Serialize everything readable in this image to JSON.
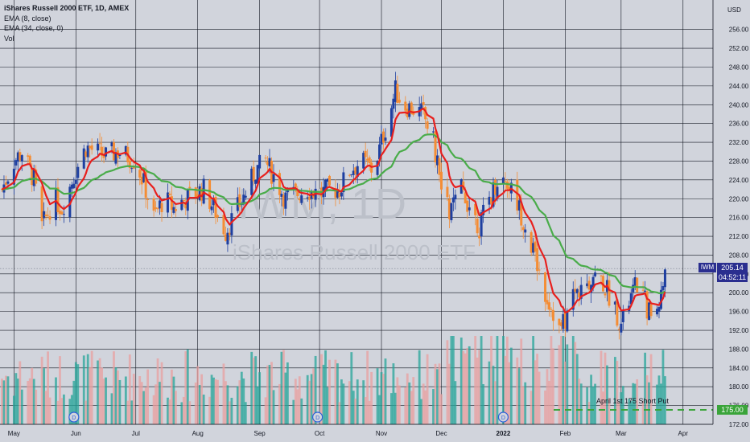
{
  "legend": {
    "title": "iShares Russell 2000 ETF, 1D, AMEX",
    "ema_fast": "EMA (8, close)",
    "ema_slow": "EMA (34, close, 0)",
    "vol": "Vol"
  },
  "watermark": {
    "symbol": "IWM, 1D",
    "name": "iShares Russell 2000 ETF"
  },
  "price_scale": {
    "currency": "USD"
  },
  "last_price": {
    "ticker": "IWM",
    "value": "205.14",
    "countdown": "04:52:11"
  },
  "annotation": {
    "text": "April 1st 175 Short Put",
    "level_label": "175.00",
    "level": 175
  },
  "event_marker_label": "D",
  "colors": {
    "background": "#d1d4dc",
    "up": "#26a69a",
    "down": "#f48d35",
    "ema_fast": "#e8201e",
    "ema_slow": "#49ac49",
    "tag": "#2a2e8f",
    "event": "#2d5fd8"
  },
  "chart_data": {
    "type": "candlestick",
    "ylim": [
      172,
      258
    ],
    "yticks": [
      172,
      176,
      180,
      184,
      188,
      192,
      196,
      200,
      204,
      208,
      212,
      216,
      220,
      224,
      228,
      232,
      236,
      240,
      244,
      248,
      252,
      256
    ],
    "y_tick_labels": [
      "172.00",
      "176.00",
      "180.00",
      "184.00",
      "188.00",
      "192.00",
      "196.00",
      "200.00",
      "204.00",
      "208.00",
      "212.00",
      "216.00",
      "220.00",
      "224.00",
      "228.00",
      "232.00",
      "236.00",
      "240.00",
      "244.00",
      "248.00",
      "252.00",
      "256.00"
    ],
    "x_ticks": [
      {
        "label": "May",
        "day": 0
      },
      {
        "label": "Jun",
        "day": 31
      },
      {
        "label": "Jul",
        "day": 61
      },
      {
        "label": "Aug",
        "day": 92
      },
      {
        "label": "Sep",
        "day": 123
      },
      {
        "label": "Oct",
        "day": 153
      },
      {
        "label": "Nov",
        "day": 184
      },
      {
        "label": "Dec",
        "day": 214
      },
      {
        "label": "2022",
        "day": 245
      },
      {
        "label": "Feb",
        "day": 276
      },
      {
        "label": "Mar",
        "day": 304
      },
      {
        "label": "Apr",
        "day": 335
      }
    ],
    "x_range_days": [
      -7,
      350
    ],
    "grid": true,
    "close_anchors": [
      [
        -6,
        222
      ],
      [
        0,
        228
      ],
      [
        4,
        230
      ],
      [
        10,
        224
      ],
      [
        14,
        214
      ],
      [
        20,
        220
      ],
      [
        24,
        218
      ],
      [
        31,
        226
      ],
      [
        36,
        231
      ],
      [
        41,
        230
      ],
      [
        46,
        229
      ],
      [
        52,
        230
      ],
      [
        57,
        229
      ],
      [
        61,
        228
      ],
      [
        66,
        222
      ],
      [
        70,
        216
      ],
      [
        75,
        220
      ],
      [
        80,
        218
      ],
      [
        86,
        220
      ],
      [
        90,
        221
      ],
      [
        95,
        222
      ],
      [
        100,
        218
      ],
      [
        106,
        213
      ],
      [
        112,
        218
      ],
      [
        117,
        222
      ],
      [
        121,
        226
      ],
      [
        126,
        228
      ],
      [
        131,
        224
      ],
      [
        136,
        220
      ],
      [
        141,
        221
      ],
      [
        147,
        222
      ],
      [
        153,
        221
      ],
      [
        158,
        222
      ],
      [
        163,
        222
      ],
      [
        168,
        226
      ],
      [
        174,
        228
      ],
      [
        180,
        226
      ],
      [
        184,
        232
      ],
      [
        188,
        238
      ],
      [
        191,
        243
      ],
      [
        195,
        240
      ],
      [
        200,
        239
      ],
      [
        205,
        238
      ],
      [
        210,
        232
      ],
      [
        214,
        222
      ],
      [
        218,
        217
      ],
      [
        224,
        222
      ],
      [
        229,
        218
      ],
      [
        233,
        214
      ],
      [
        238,
        220
      ],
      [
        243,
        225
      ],
      [
        248,
        223
      ],
      [
        253,
        218
      ],
      [
        257,
        213
      ],
      [
        262,
        206
      ],
      [
        266,
        200
      ],
      [
        270,
        196
      ],
      [
        273,
        192
      ],
      [
        276,
        194
      ],
      [
        280,
        200
      ],
      [
        285,
        200
      ],
      [
        290,
        204
      ],
      [
        295,
        202
      ],
      [
        300,
        198
      ],
      [
        304,
        193
      ],
      [
        308,
        198
      ],
      [
        312,
        202
      ],
      [
        316,
        198
      ],
      [
        320,
        194
      ],
      [
        324,
        200
      ],
      [
        327,
        205.14
      ]
    ],
    "series": [
      {
        "name": "EMA (8, close)",
        "period": 8
      },
      {
        "name": "EMA (34, close, 0)",
        "period": 34
      },
      {
        "name": "Vol"
      }
    ],
    "event_marker_days": [
      30,
      152,
      245
    ]
  }
}
